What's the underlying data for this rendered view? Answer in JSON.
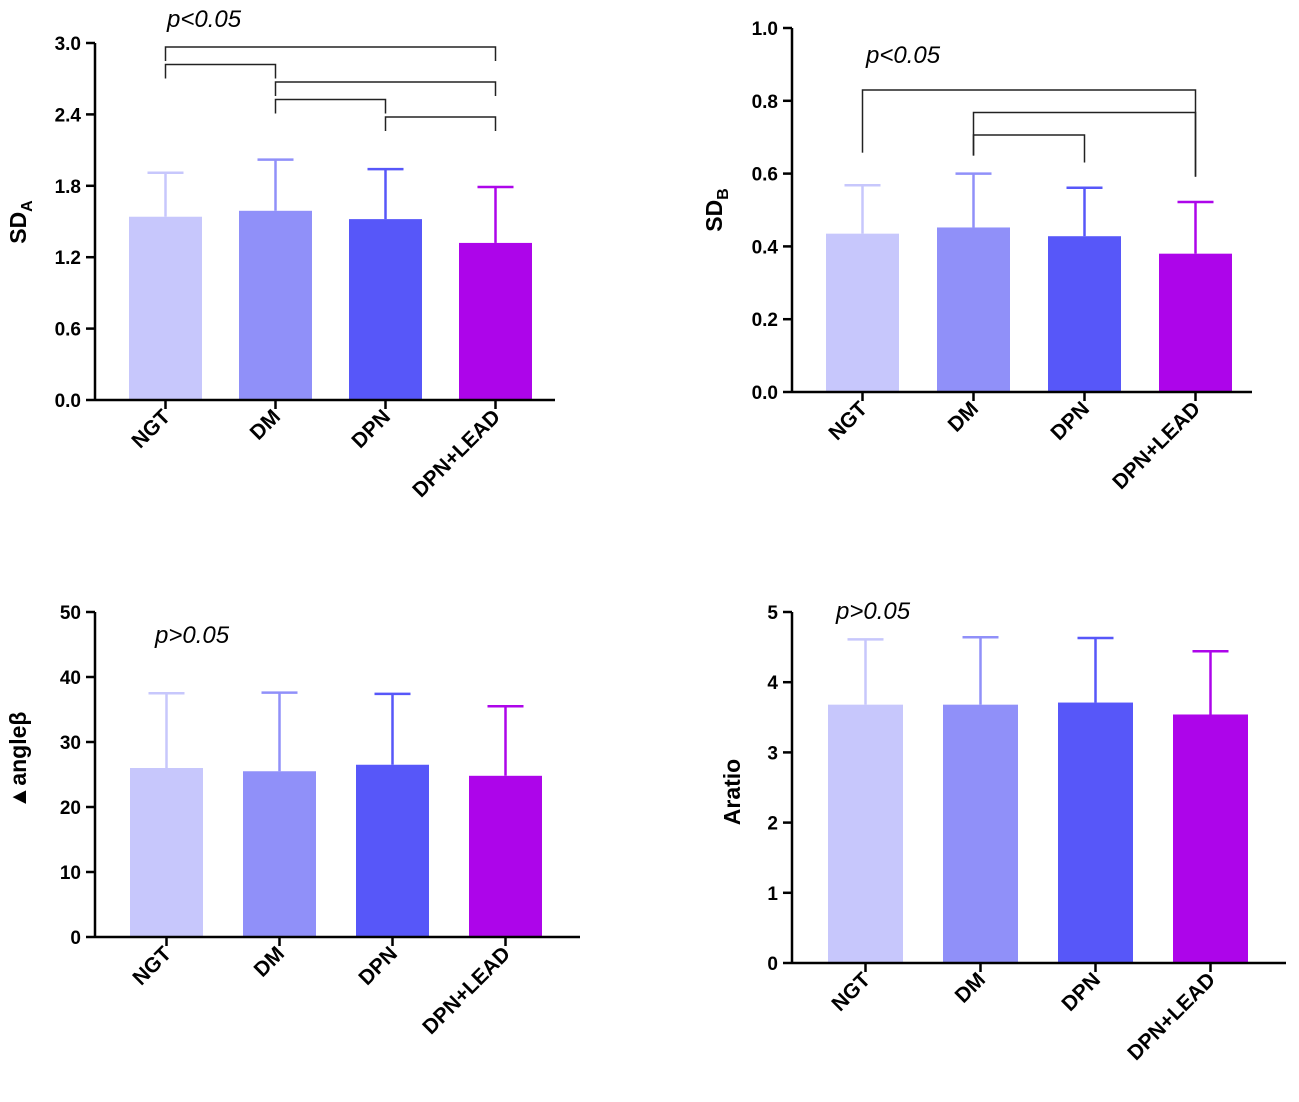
{
  "colors": {
    "NGT": "#c7c7fc",
    "DM": "#9090f9",
    "DPN": "#5757f9",
    "DPN+LEAD": "#ad05ea",
    "axis": "#000000",
    "bracket": "#222222"
  },
  "chart_data": [
    {
      "type": "bar",
      "panel": "top-left",
      "ylabel": "SD",
      "ylabel_sub": "A",
      "categories": [
        "NGT",
        "DM",
        "DPN",
        "DPN+LEAD"
      ],
      "values": [
        1.54,
        1.59,
        1.52,
        1.32
      ],
      "errors": [
        0.37,
        0.43,
        0.42,
        0.47
      ],
      "ylim": [
        0,
        3.0
      ],
      "yticks": [
        "0.0",
        "0.6",
        "1.2",
        "1.8",
        "2.4",
        "3.0"
      ],
      "annotation": "p<0.05",
      "brackets": [
        [
          0,
          3
        ],
        [
          0,
          1
        ],
        [
          1,
          3
        ],
        [
          1,
          2
        ],
        [
          2,
          3
        ]
      ]
    },
    {
      "type": "bar",
      "panel": "top-right",
      "ylabel": "SD",
      "ylabel_sub": "B",
      "categories": [
        "NGT",
        "DM",
        "DPN",
        "DPN+LEAD"
      ],
      "values": [
        0.435,
        0.452,
        0.428,
        0.38
      ],
      "errors": [
        0.133,
        0.148,
        0.133,
        0.142
      ],
      "ylim": [
        0,
        1.0
      ],
      "yticks": [
        "0.0",
        "0.2",
        "0.4",
        "0.6",
        "0.8",
        "1.0"
      ],
      "annotation": "p<0.05",
      "brackets": [
        [
          0,
          3
        ],
        [
          1,
          3
        ],
        [
          1,
          2
        ]
      ]
    },
    {
      "type": "bar",
      "panel": "bottom-left",
      "ylabel": "▲angleβ",
      "ylabel_sub": "",
      "categories": [
        "NGT",
        "DM",
        "DPN",
        "DPN+LEAD"
      ],
      "values": [
        26.0,
        25.5,
        26.5,
        24.8
      ],
      "errors": [
        11.5,
        12.1,
        10.9,
        10.7
      ],
      "ylim": [
        0,
        50
      ],
      "yticks": [
        "0",
        "10",
        "20",
        "30",
        "40",
        "50"
      ],
      "annotation": "p>0.05",
      "brackets": []
    },
    {
      "type": "bar",
      "panel": "bottom-right",
      "ylabel": "Aratio",
      "ylabel_sub": "",
      "categories": [
        "NGT",
        "DM",
        "DPN",
        "DPN+LEAD"
      ],
      "values": [
        3.68,
        3.68,
        3.71,
        3.54
      ],
      "errors": [
        0.93,
        0.96,
        0.92,
        0.9
      ],
      "ylim": [
        0,
        5
      ],
      "yticks": [
        "0",
        "1",
        "2",
        "3",
        "4",
        "5"
      ],
      "annotation": "p>0.05",
      "brackets": []
    }
  ]
}
